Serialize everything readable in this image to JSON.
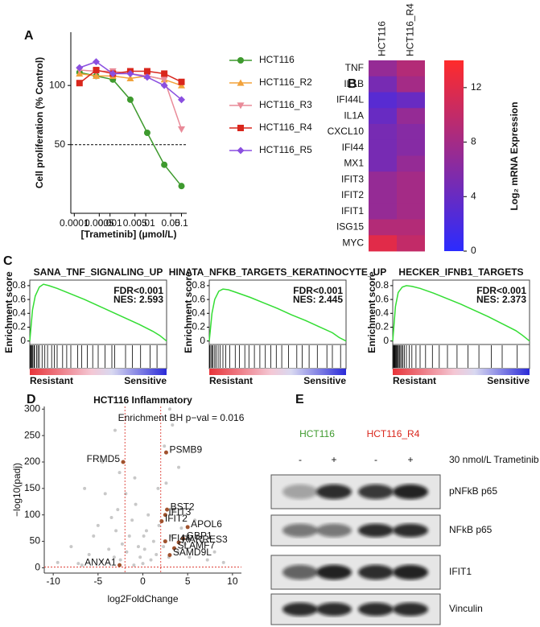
{
  "chart_data": [
    {
      "panel_label": "A",
      "type": "dose_response",
      "xlabel": "[Trametinib] (µmol/L)",
      "ylabel": "Cell proliferation (% Control)",
      "x": [
        0.00014,
        0.00041,
        0.0012,
        0.0037,
        0.011,
        0.033,
        0.1
      ],
      "xscale": "log",
      "xlim": [
        8e-05,
        0.14
      ],
      "xticks": [
        0.0001,
        0.0005,
        0.001,
        0.005,
        0.01,
        0.05,
        0.1
      ],
      "ylim": [
        -8,
        145
      ],
      "yticks": [
        50,
        100
      ],
      "reference_line": 50,
      "series": [
        {
          "name": "HCT116",
          "color": "#3e9a2e",
          "marker": "circle",
          "values": [
            111,
            108,
            105,
            88,
            60,
            33,
            15
          ]
        },
        {
          "name": "HCT116_R2",
          "color": "#f2a23a",
          "marker": "triangle",
          "values": [
            110,
            108,
            108,
            106,
            108,
            105,
            100
          ]
        },
        {
          "name": "HCT116_R3",
          "color": "#e98b99",
          "marker": "triangle-down",
          "values": [
            113,
            112,
            112,
            110,
            108,
            105,
            63
          ]
        },
        {
          "name": "HCT116_R4",
          "color": "#d9261c",
          "marker": "square",
          "values": [
            102,
            113,
            110,
            112,
            112,
            110,
            103
          ]
        },
        {
          "name": "HCT116_R5",
          "color": "#8a4fe0",
          "marker": "diamond",
          "values": [
            115,
            120,
            110,
            110,
            107,
            100,
            88
          ]
        }
      ]
    },
    {
      "panel_label": "B",
      "type": "heatmap",
      "columns": [
        "HCT116",
        "HCT116_R4"
      ],
      "rows": [
        "TNF",
        "IL1B",
        "IFI44L",
        "IL1A",
        "CXCL10",
        "IFI44",
        "MX1",
        "IFIT3",
        "IFIT2",
        "IFIT1",
        "ISG15",
        "MYC"
      ],
      "values": [
        [
          7,
          9
        ],
        [
          5,
          8
        ],
        [
          3,
          4
        ],
        [
          4,
          7
        ],
        [
          5,
          6
        ],
        [
          5,
          6
        ],
        [
          5,
          7
        ],
        [
          7,
          8
        ],
        [
          7,
          8
        ],
        [
          7,
          8
        ],
        [
          9,
          9
        ],
        [
          12,
          10
        ]
      ],
      "clim": [
        0,
        14
      ],
      "cticks": [
        0,
        4,
        8,
        12
      ],
      "colorbar_label": "Log₂ mRNA Expression",
      "colors": [
        "#2b2bff",
        "#ff2b2b"
      ]
    },
    {
      "panel_label": "C",
      "type": "gsea",
      "title": "SANA_TNF_SIGNALING_UP",
      "stats": [
        "FDR<0.001",
        "NES: 2.593"
      ],
      "ylabel": "Enrichment score",
      "x": [
        0,
        0.02,
        0.04,
        0.07,
        0.1,
        0.14,
        0.2,
        0.3,
        0.4,
        0.5,
        0.6,
        0.7,
        0.8,
        0.9,
        0.95,
        1
      ],
      "values": [
        0,
        0.45,
        0.65,
        0.78,
        0.82,
        0.8,
        0.76,
        0.68,
        0.6,
        0.51,
        0.42,
        0.33,
        0.24,
        0.14,
        0.08,
        0
      ],
      "xlim": [
        0,
        1
      ],
      "ylim": [
        -0.05,
        0.88
      ],
      "yticks": [
        0,
        0.2,
        0.4,
        0.6,
        0.8
      ],
      "color": "#33dd33",
      "hits": [
        0.005,
        0.01,
        0.015,
        0.02,
        0.03,
        0.035,
        0.05,
        0.06,
        0.07,
        0.09,
        0.11,
        0.13,
        0.16,
        0.18,
        0.2,
        0.24,
        0.27,
        0.3,
        0.35,
        0.38,
        0.42,
        0.46,
        0.5,
        0.55,
        0.6,
        0.62,
        0.7,
        0.75,
        0.81,
        0.88,
        0.93
      ],
      "low_label": "Resistant",
      "high_label": "Sensitive"
    },
    {
      "type": "gsea",
      "title": "HINATA_NFKB_TARGETS_KERATINOCYTE_UP",
      "stats": [
        "FDR<0.001",
        "NES: 2.445"
      ],
      "ylabel": "Enrichment score",
      "x": [
        0,
        0.02,
        0.04,
        0.07,
        0.1,
        0.14,
        0.2,
        0.3,
        0.4,
        0.5,
        0.6,
        0.7,
        0.8,
        0.9,
        0.95,
        1
      ],
      "values": [
        0,
        0.4,
        0.6,
        0.72,
        0.75,
        0.74,
        0.7,
        0.63,
        0.55,
        0.47,
        0.38,
        0.3,
        0.21,
        0.12,
        0.05,
        0
      ],
      "xlim": [
        0,
        1
      ],
      "ylim": [
        -0.05,
        0.88
      ],
      "yticks": [
        0,
        0.2,
        0.4,
        0.6,
        0.8
      ],
      "color": "#33dd33",
      "hits": [
        0.004,
        0.012,
        0.02,
        0.028,
        0.04,
        0.05,
        0.065,
        0.08,
        0.1,
        0.12,
        0.15,
        0.19,
        0.22,
        0.26,
        0.29,
        0.33,
        0.37,
        0.41,
        0.45,
        0.49,
        0.53,
        0.58,
        0.64,
        0.68,
        0.73,
        0.79,
        0.86,
        0.9,
        0.96
      ],
      "low_label": "Resistant",
      "high_label": "Sensitive"
    },
    {
      "type": "gsea",
      "title": "HECKER_IFNB1_TARGETS",
      "stats": [
        "FDR<0.001",
        "NES: 2.373"
      ],
      "ylabel": "Enrichment score",
      "x": [
        0,
        0.02,
        0.04,
        0.07,
        0.1,
        0.14,
        0.2,
        0.3,
        0.4,
        0.5,
        0.6,
        0.7,
        0.8,
        0.9,
        0.95,
        1
      ],
      "values": [
        0,
        0.5,
        0.7,
        0.78,
        0.8,
        0.79,
        0.76,
        0.69,
        0.61,
        0.53,
        0.44,
        0.35,
        0.25,
        0.15,
        0.08,
        0
      ],
      "xlim": [
        0,
        1
      ],
      "ylim": [
        -0.05,
        0.88
      ],
      "yticks": [
        0,
        0.2,
        0.4,
        0.6,
        0.8
      ],
      "color": "#33dd33",
      "hits": [
        0.003,
        0.008,
        0.012,
        0.016,
        0.02,
        0.025,
        0.03,
        0.036,
        0.042,
        0.05,
        0.058,
        0.066,
        0.075,
        0.085,
        0.1,
        0.12,
        0.14,
        0.17,
        0.2,
        0.24,
        0.29,
        0.34,
        0.4,
        0.47,
        0.55,
        0.63,
        0.72,
        0.8,
        0.91
      ],
      "low_label": "Resistant",
      "high_label": "Sensitive"
    },
    {
      "panel_label": "D",
      "type": "volcano",
      "title": "HCT116 Inflammatory",
      "annotation": "Enrichment BH p−val = 0.016",
      "xlabel": "log2FoldChange",
      "ylabel": "−log10(padj)",
      "xlim": [
        -11,
        11
      ],
      "xticks": [
        -10,
        -5,
        0,
        5,
        10
      ],
      "ylim": [
        -10,
        305
      ],
      "yticks": [
        0,
        50,
        100,
        150,
        200,
        250,
        300
      ],
      "vlines": [
        -2,
        2
      ],
      "hline": 1.3,
      "background": {
        "color": "#c8c8c8",
        "x": [
          -9.5,
          -8,
          -7.2,
          -6.5,
          -6,
          -5.5,
          -5,
          -4.6,
          -4.2,
          -3.8,
          -3.5,
          -3.2,
          -3,
          -2.8,
          -2.5,
          -2.3,
          -1.8,
          -1.5,
          -1.2,
          -1,
          -0.8,
          -0.5,
          -0.3,
          0,
          0.2,
          0.4,
          0.6,
          0.9,
          1.2,
          1.5,
          1.8,
          2.3,
          2.6,
          2.9,
          3.2,
          3.5,
          3.9,
          4.3,
          4.7,
          5.2,
          5.8,
          6.5,
          7.2,
          8,
          9,
          -3.1,
          -4.5,
          -2.6,
          3.0,
          2.4,
          -6.8,
          -1.9,
          1.7,
          0.1,
          -0.9,
          4.0,
          3.3
        ],
        "y": [
          10,
          40,
          8,
          150,
          25,
          60,
          80,
          12,
          140,
          35,
          95,
          20,
          70,
          110,
          15,
          45,
          30,
          60,
          90,
          5,
          120,
          40,
          20,
          8,
          35,
          70,
          100,
          15,
          50,
          25,
          80,
          40,
          160,
          20,
          60,
          110,
          30,
          75,
          45,
          20,
          90,
          50,
          15,
          30,
          10,
          260,
          200,
          180,
          300,
          230,
          5,
          140,
          150,
          60,
          170,
          190,
          270
        ]
      },
      "highlighted": {
        "color": "#a0522d",
        "x": [
          -2.2,
          2.6,
          2.7,
          2.5,
          2.1,
          5,
          4.5,
          4,
          2.5,
          3.5,
          3,
          -2.6
        ],
        "y": [
          200,
          218,
          110,
          100,
          88,
          77,
          55,
          48,
          50,
          37,
          24,
          5
        ],
        "labels": [
          "FRMD5",
          "PSMB9",
          "BST2",
          "IFIT3",
          "IFIT2",
          "APOL6",
          "GBP1",
          "RARRES3",
          "IFI44",
          "SLAMF7",
          "SAMD9L",
          "ANXA1"
        ]
      }
    }
  ],
  "blot": {
    "panel_label": "E",
    "cell_lines": [
      {
        "name": "HCT116",
        "color": "#3e9a2e"
      },
      {
        "name": "HCT116_R4",
        "color": "#d9261c"
      }
    ],
    "treatment": [
      "-",
      "+",
      "-",
      "+"
    ],
    "treatment_label": "30 nmol/L Trametinib",
    "proteins": [
      "pNFkB p65",
      "NFkB p65",
      "IFIT1",
      "Vinculin"
    ]
  }
}
